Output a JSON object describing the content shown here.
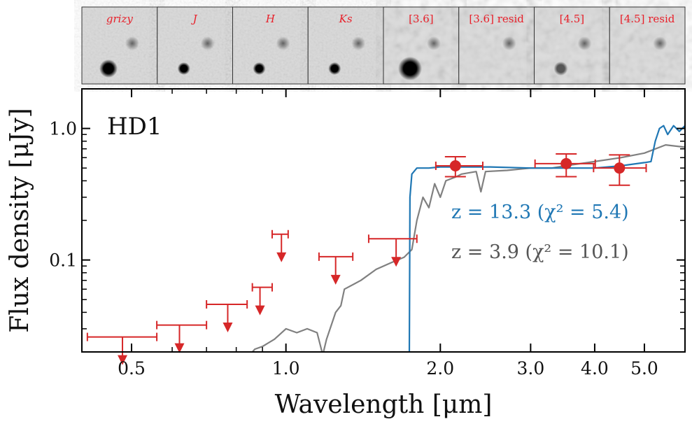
{
  "stamps": [
    {
      "label": "grizy",
      "italic": true
    },
    {
      "label": "J",
      "italic": true
    },
    {
      "label": "H",
      "italic": true
    },
    {
      "label": "Ks",
      "italic": true
    },
    {
      "label": "[3.6]",
      "italic": false
    },
    {
      "label": "[3.6] resid",
      "italic": false
    },
    {
      "label": "[4.5]",
      "italic": false
    },
    {
      "label": "[4.5] resid",
      "italic": false
    }
  ],
  "chart_data": {
    "type": "line",
    "panel_label": "HD1",
    "xlabel": "Wavelength [μm]",
    "ylabel": "Flux density [μJy]",
    "xscale": "log",
    "yscale": "log",
    "xlim": [
      0.4,
      6.0
    ],
    "ylim": [
      0.02,
      2.0
    ],
    "xticks": [
      0.5,
      1.0,
      2.0,
      3.0,
      4.0,
      5.0
    ],
    "xtick_labels": [
      "0.5",
      "1.0",
      "2.0",
      "3.0",
      "4.0",
      "5.0"
    ],
    "yticks": [
      0.1,
      1.0
    ],
    "ytick_labels": [
      "0.1",
      "1.0"
    ],
    "grid": false,
    "legend_placement": "center-right",
    "colors": {
      "z13": "#1f77b4",
      "z4": "#808080",
      "photometry": "#d62728"
    },
    "upper_limits": [
      {
        "x": 0.48,
        "xerr": [
          0.41,
          0.56
        ],
        "y": 0.026
      },
      {
        "x": 0.62,
        "xerr": [
          0.56,
          0.7
        ],
        "y": 0.032
      },
      {
        "x": 0.77,
        "xerr": [
          0.7,
          0.84
        ],
        "y": 0.046
      },
      {
        "x": 0.89,
        "xerr": [
          0.86,
          0.94
        ],
        "y": 0.062
      },
      {
        "x": 0.98,
        "xerr": [
          0.94,
          1.01
        ],
        "y": 0.157
      },
      {
        "x": 1.25,
        "xerr": [
          1.16,
          1.35
        ],
        "y": 0.106
      },
      {
        "x": 1.64,
        "xerr": [
          1.45,
          1.8
        ],
        "y": 0.145
      }
    ],
    "detections": [
      {
        "x": 2.14,
        "xerr": [
          1.96,
          2.42
        ],
        "y": 0.52,
        "yerr": [
          0.43,
          0.61
        ]
      },
      {
        "x": 3.52,
        "xerr": [
          3.06,
          4.01
        ],
        "y": 0.54,
        "yerr": [
          0.43,
          0.64
        ]
      },
      {
        "x": 4.47,
        "xerr": [
          3.98,
          5.04
        ],
        "y": 0.5,
        "yerr": [
          0.37,
          0.63
        ]
      }
    ],
    "series": [
      {
        "name": "z = 13.3 (χ² = 5.4)",
        "color": "#1f77b4",
        "x": [
          1.74,
          1.745,
          1.76,
          1.8,
          1.9,
          2.0,
          2.5,
          3.0,
          3.5,
          4.0,
          4.5,
          5.0,
          5.15,
          5.25,
          5.35,
          5.45,
          5.55,
          5.7,
          5.85,
          6.0
        ],
        "y": [
          0.019,
          0.3,
          0.45,
          0.5,
          0.5,
          0.51,
          0.51,
          0.5,
          0.5,
          0.5,
          0.52,
          0.55,
          0.56,
          0.8,
          1.0,
          1.05,
          0.9,
          1.05,
          0.95,
          1.05
        ]
      },
      {
        "name": "z = 3.9 (χ² = 10.1)",
        "color": "#808080",
        "x": [
          0.85,
          0.87,
          0.9,
          0.95,
          1.0,
          1.05,
          1.1,
          1.15,
          1.18,
          1.2,
          1.25,
          1.28,
          1.3,
          1.4,
          1.5,
          1.6,
          1.7,
          1.76,
          1.8,
          1.85,
          1.9,
          1.95,
          2.0,
          2.05,
          2.15,
          2.2,
          2.35,
          2.4,
          2.45,
          2.7,
          3.0,
          3.3,
          3.5,
          4.0,
          4.5,
          5.0,
          5.5,
          6.0
        ],
        "y": [
          0.019,
          0.021,
          0.022,
          0.025,
          0.03,
          0.028,
          0.03,
          0.028,
          0.019,
          0.025,
          0.04,
          0.045,
          0.06,
          0.07,
          0.085,
          0.095,
          0.105,
          0.12,
          0.2,
          0.3,
          0.25,
          0.38,
          0.3,
          0.4,
          0.43,
          0.45,
          0.47,
          0.33,
          0.47,
          0.48,
          0.5,
          0.5,
          0.52,
          0.56,
          0.6,
          0.65,
          0.75,
          0.72
        ]
      }
    ]
  }
}
